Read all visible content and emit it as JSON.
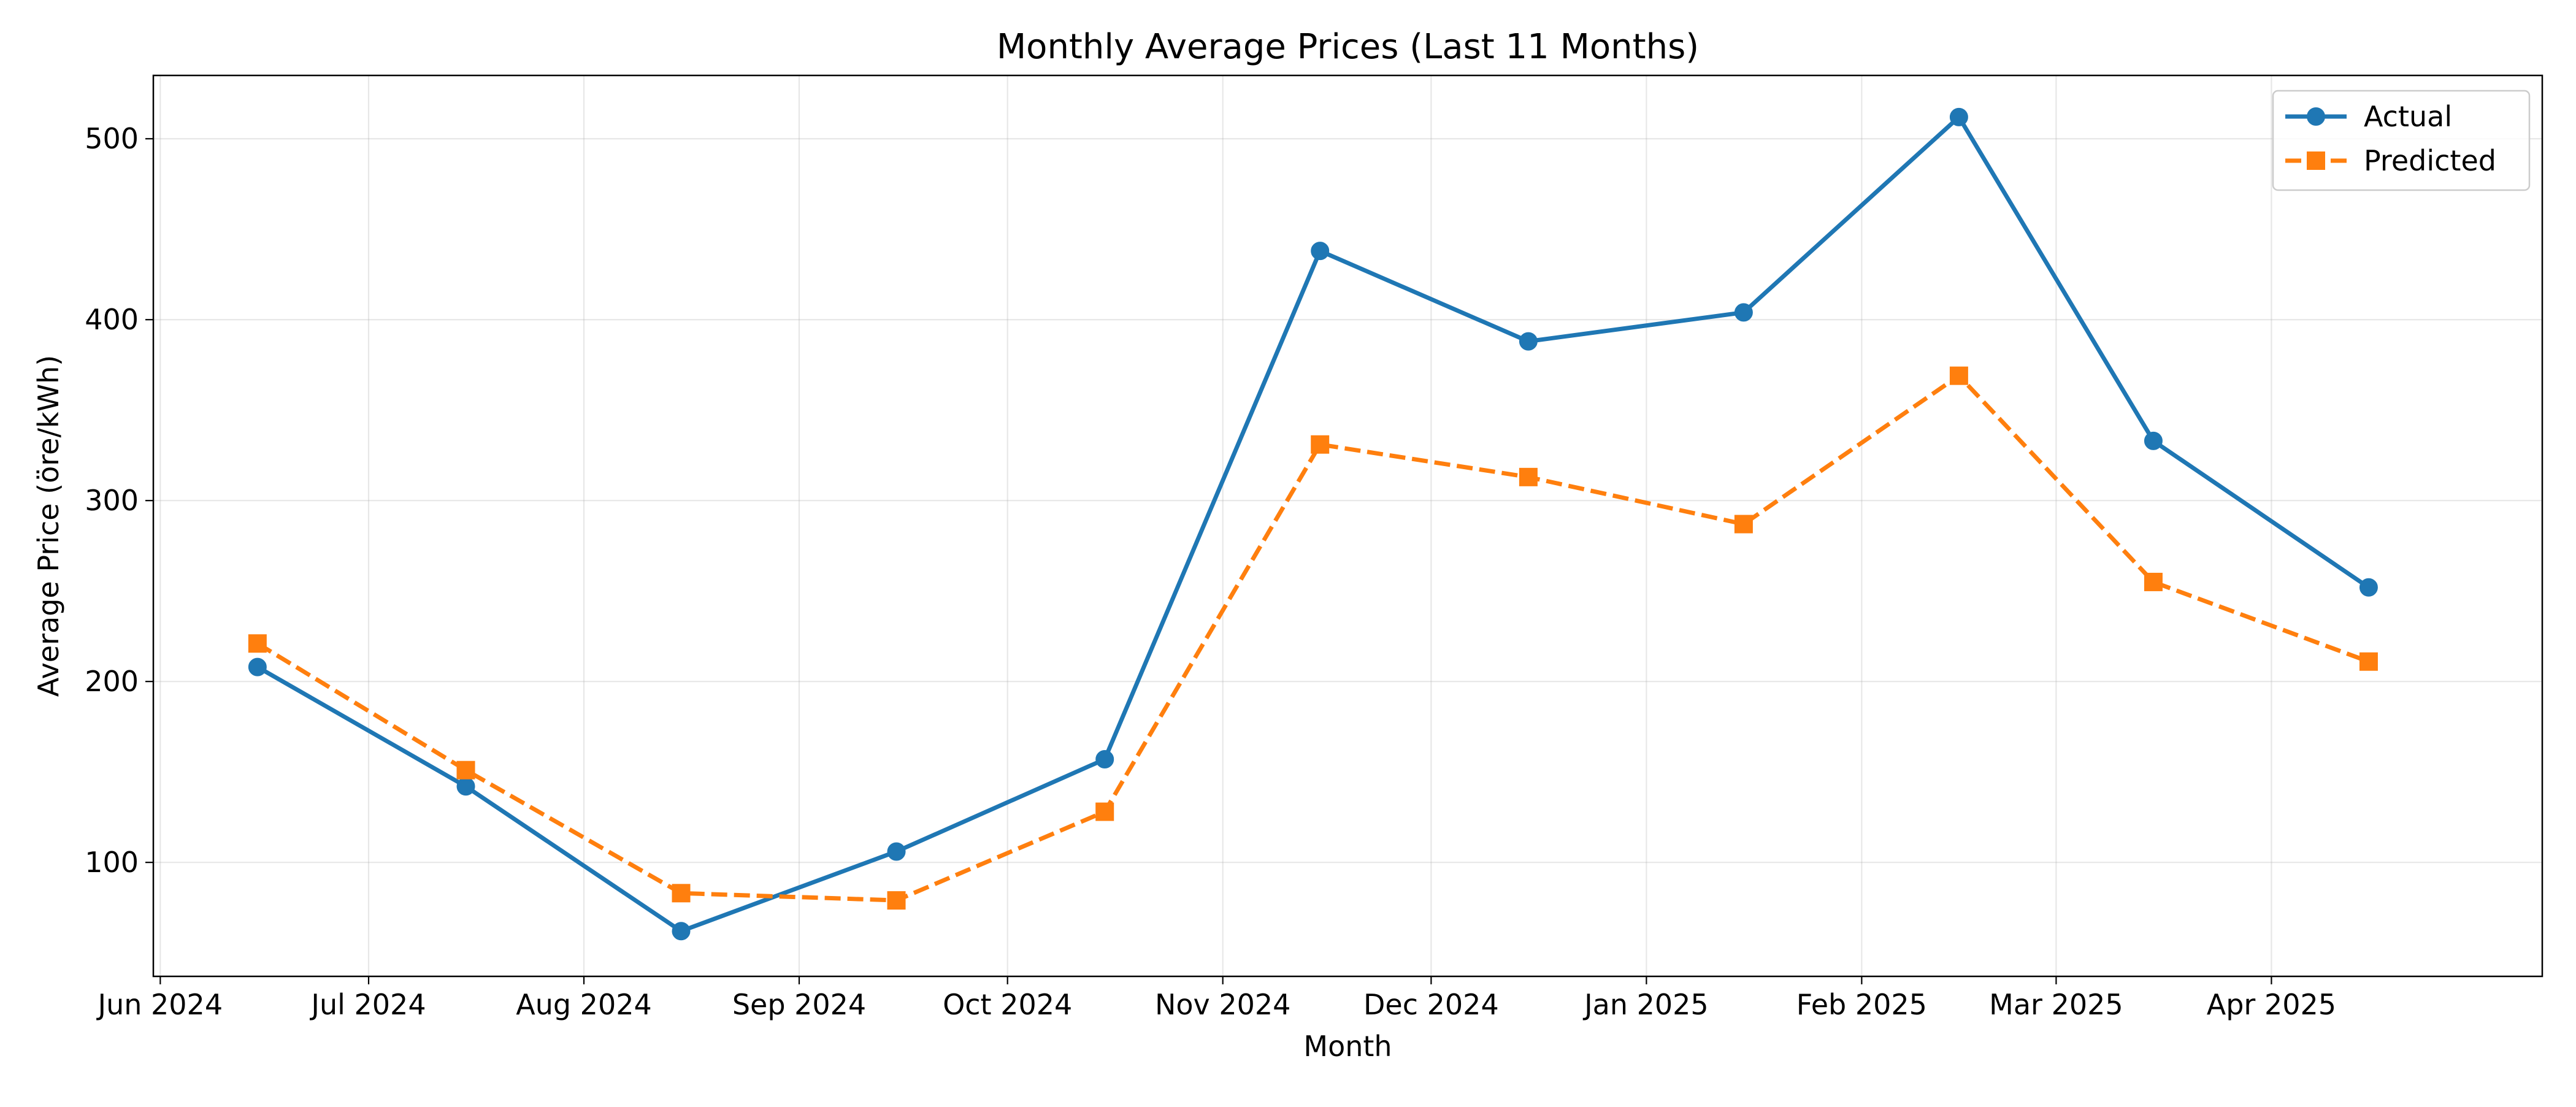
{
  "chart_data": {
    "type": "line",
    "title": "Monthly Average Prices (Last 11 Months)",
    "xlabel": "Month",
    "ylabel": "Average Price (öre/kWh)",
    "x_ticks": [
      {
        "label": "Jun 2024",
        "date": "2024-06-01"
      },
      {
        "label": "Jul 2024",
        "date": "2024-07-01"
      },
      {
        "label": "Aug 2024",
        "date": "2024-08-01"
      },
      {
        "label": "Sep 2024",
        "date": "2024-09-01"
      },
      {
        "label": "Oct 2024",
        "date": "2024-10-01"
      },
      {
        "label": "Nov 2024",
        "date": "2024-11-01"
      },
      {
        "label": "Dec 2024",
        "date": "2024-12-01"
      },
      {
        "label": "Jan 2025",
        "date": "2025-01-01"
      },
      {
        "label": "Feb 2025",
        "date": "2025-02-01"
      },
      {
        "label": "Mar 2025",
        "date": "2025-03-01"
      },
      {
        "label": "Apr 2025",
        "date": "2025-04-01"
      }
    ],
    "xlim": [
      "2024-05-31",
      "2025-05-10"
    ],
    "y_ticks": [
      100,
      200,
      300,
      400,
      500
    ],
    "ylim": [
      37,
      535
    ],
    "grid": true,
    "legend": "top-right",
    "x": [
      "2024-06-15",
      "2024-07-15",
      "2024-08-15",
      "2024-09-15",
      "2024-10-15",
      "2024-11-15",
      "2024-12-15",
      "2025-01-15",
      "2025-02-15",
      "2025-03-15",
      "2025-04-15"
    ],
    "series": [
      {
        "name": "Actual",
        "color": "#1f77b4",
        "marker": "circle",
        "linestyle": "solid",
        "values": [
          208,
          142,
          62,
          106,
          157,
          438,
          388,
          404,
          512,
          333,
          252
        ]
      },
      {
        "name": "Predicted",
        "color": "#ff7f0e",
        "marker": "square",
        "linestyle": "dashed",
        "values": [
          221,
          151,
          83,
          79,
          128,
          331,
          313,
          287,
          369,
          255,
          211
        ]
      }
    ]
  }
}
